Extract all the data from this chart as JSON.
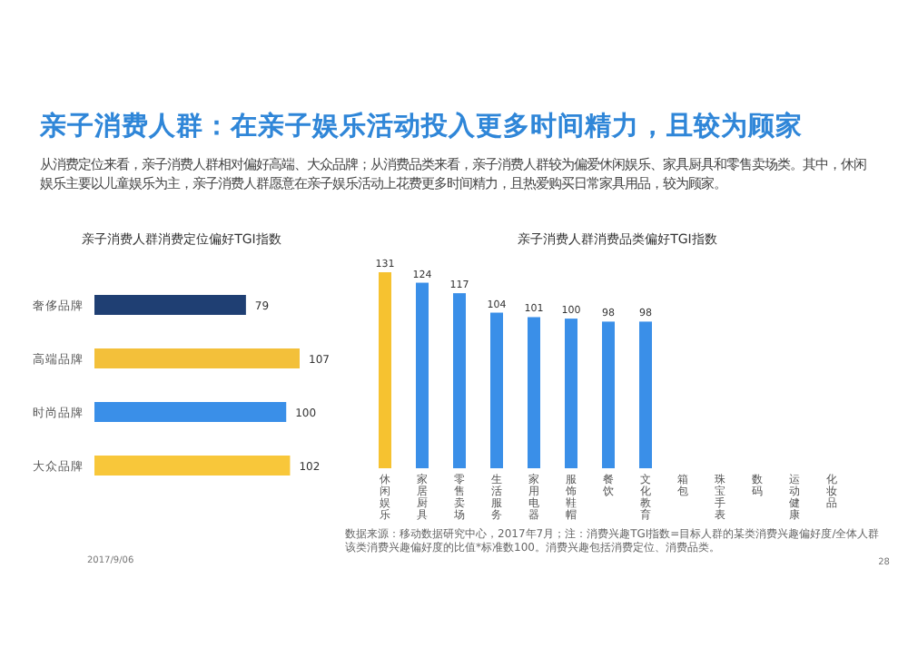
{
  "chart_data": [
    {
      "type": "other",
      "title": "亲子消费人群：在亲子娱乐活动投入更多时间精力，且较为顾家",
      "subtitle": "从消费定位来看，亲子消费人群相对偏好高端、大众品牌；从消费品类来看，亲子消费人群较为偏爱休闲娱乐、家具厨具和零售卖场类。其中，休闲娱乐主要以儿童娱乐为主，亲子消费人群愿意在亲子娱乐活动上花费更多时间精力，且热爱购买日常家具用品，较为顾家。",
      "annotations": [
        "2017/9/06",
        "28"
      ]
    },
    {
      "type": "bar",
      "orientation": "horizontal",
      "title": "亲子消费人群消费定位偏好TGI指数",
      "categories": [
        "奢侈品牌",
        "高端品牌",
        "时尚品牌",
        "大众品牌"
      ],
      "values": [
        79,
        107,
        100,
        102
      ],
      "colors": [
        "#1f3f73",
        "#f3c03a",
        "#3a8fe8",
        "#f8c73a"
      ],
      "data_labels": true
    },
    {
      "type": "bar",
      "title": "亲子消费人群消费品类偏好TGI指数",
      "categories": [
        "休闲娱乐",
        "家居厨具",
        "零售卖场",
        "生活服务",
        "家用电器",
        "服饰鞋帽",
        "餐饮",
        "文化教育",
        "箱包",
        "珠宝手表",
        "数码",
        "运动健康",
        "化妆品"
      ],
      "values": [
        131,
        124,
        117,
        104,
        101,
        100,
        98,
        98,
        null,
        null,
        null,
        null,
        null
      ],
      "colors": [
        "#f6c230",
        "#3a8fe8",
        "#3a8fe8",
        "#3a8fe8",
        "#3a8fe8",
        "#3a8fe8",
        "#3a8fe8",
        "#3a8fe8",
        null,
        null,
        null,
        null,
        null
      ],
      "data_labels": true,
      "annotations": [
        "数据来源：移动数据研究中心，2017年7月；注：消费兴趣TGI指数=目标人群的某类消费兴趣偏好度/全体人群该类消费兴趣偏好度的比值*标准数100。消费兴趣包括消费定位、消费品类。"
      ]
    }
  ]
}
